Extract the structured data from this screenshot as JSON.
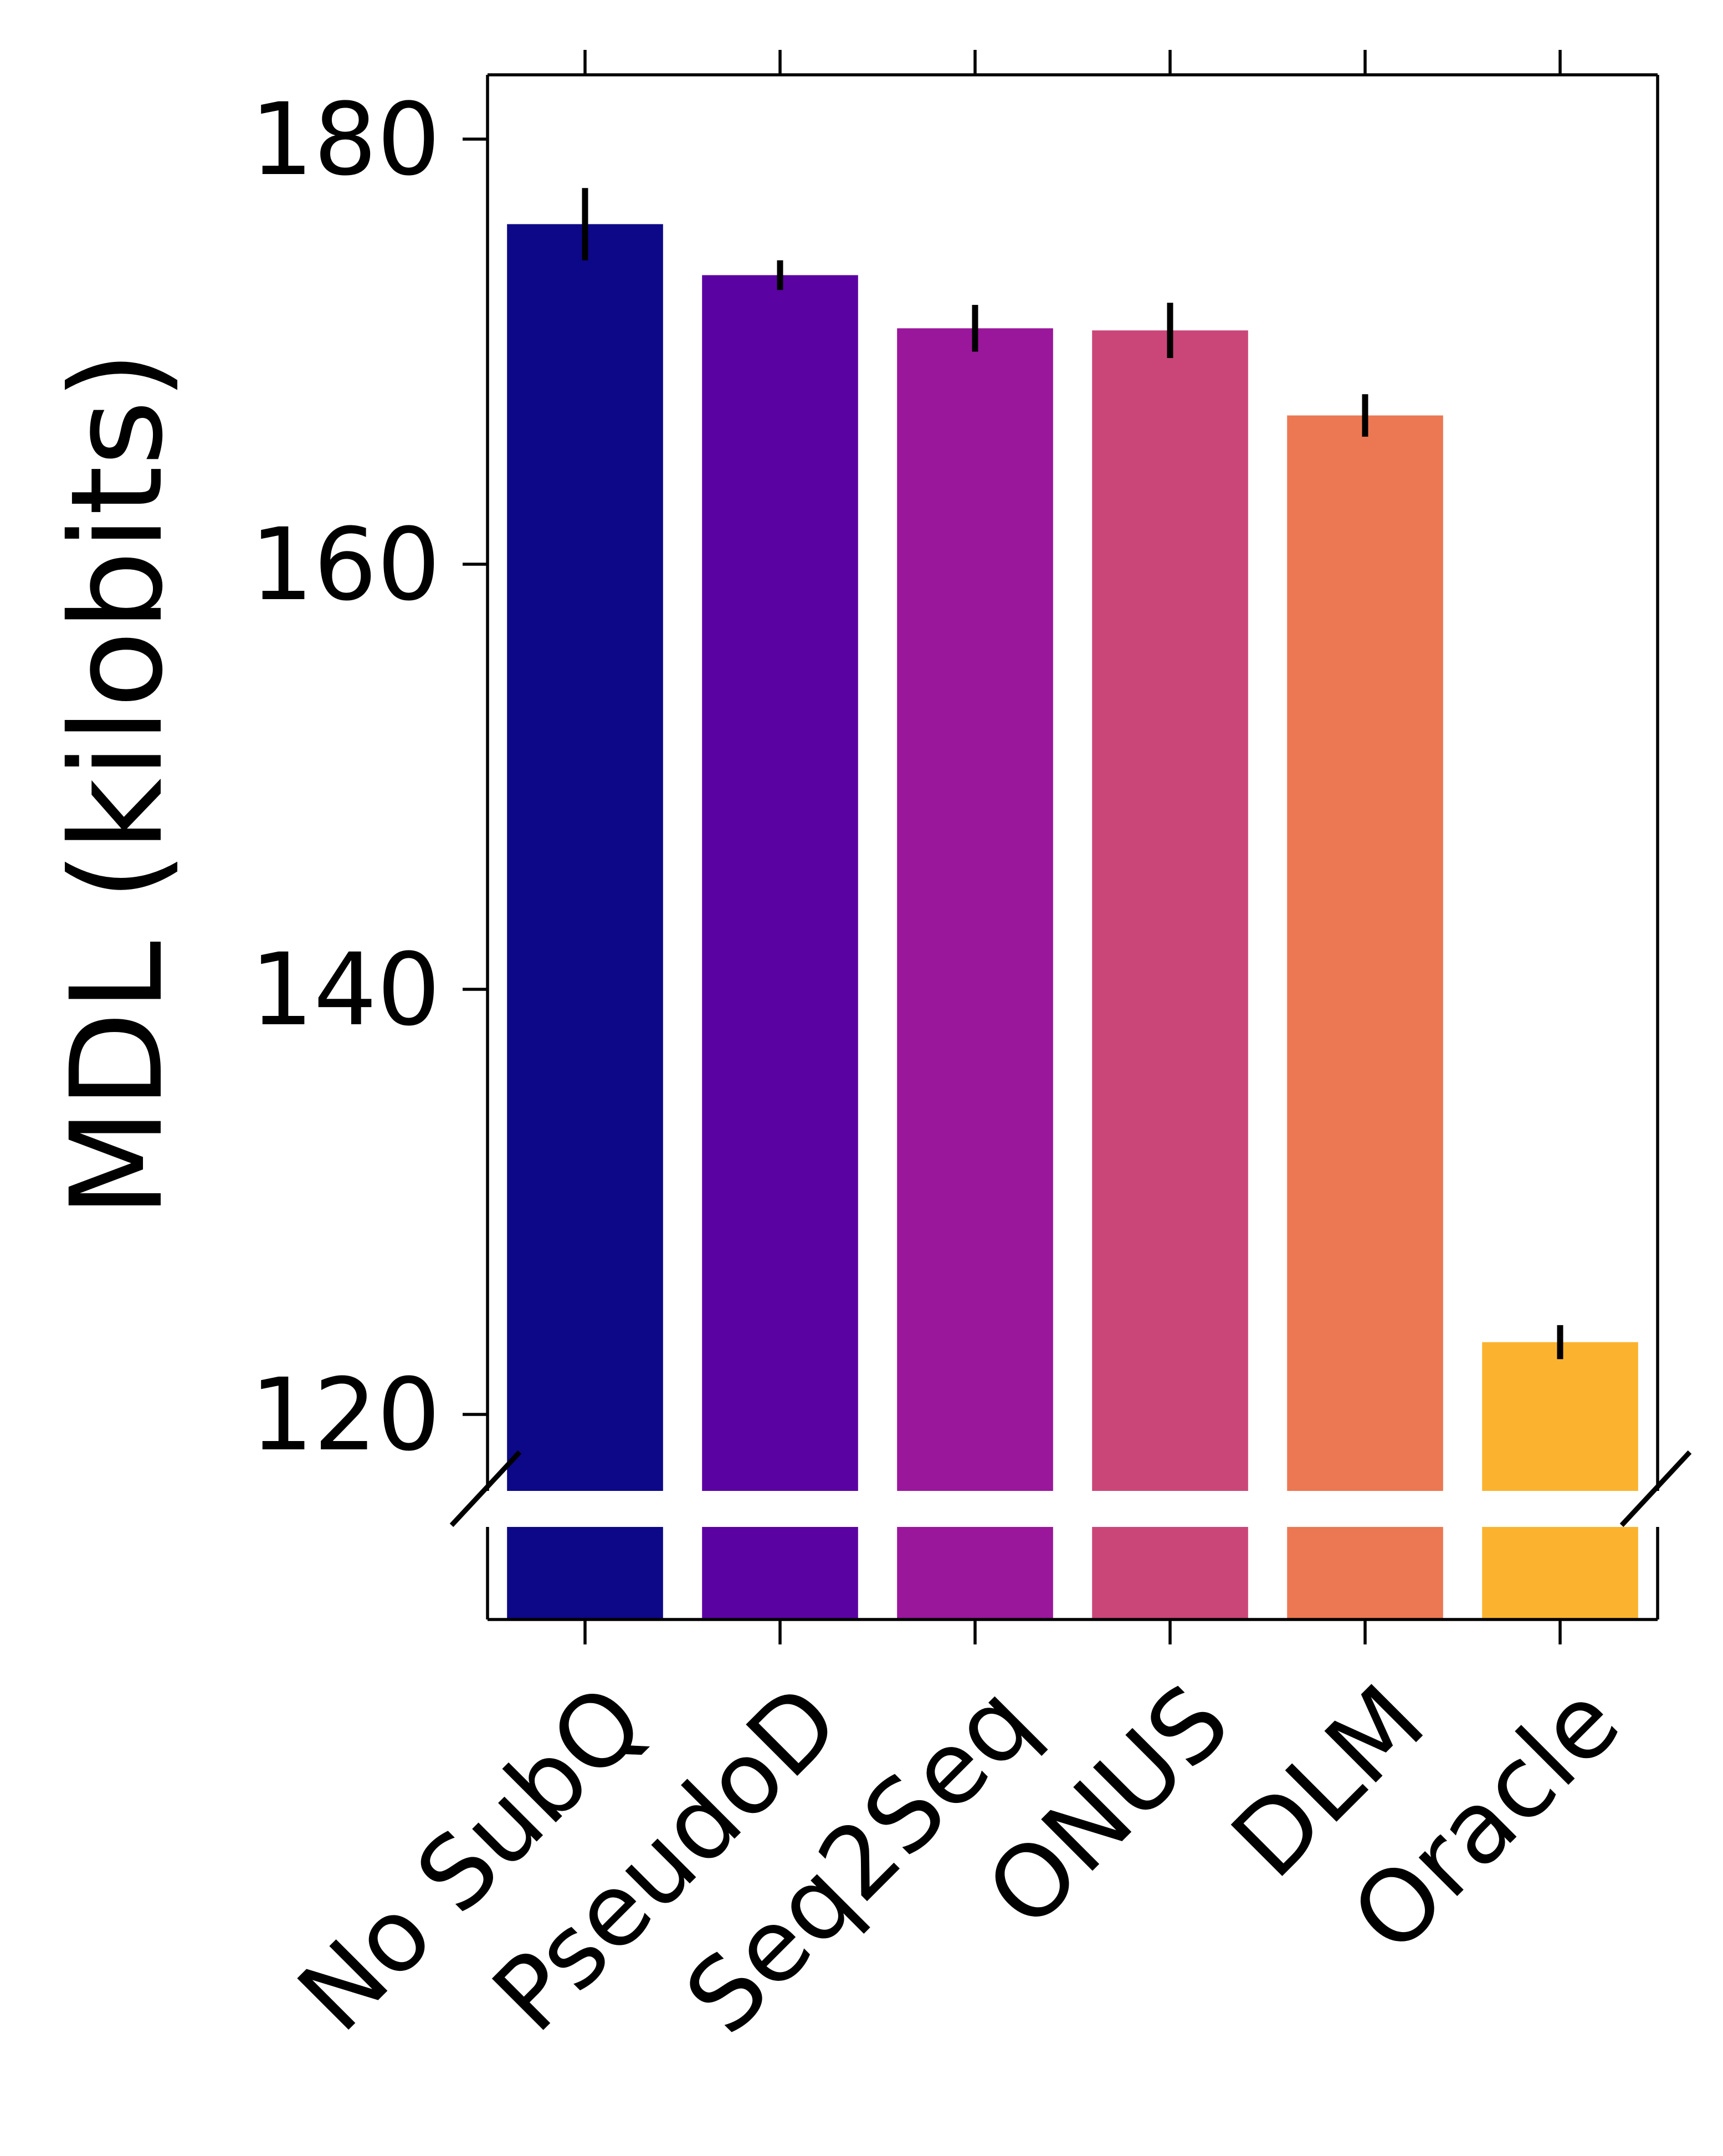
{
  "chart_data": {
    "type": "bar",
    "ylabel": "MDL (kilobits)",
    "ylim": [
      116.5,
      183
    ],
    "yticks": [
      120,
      140,
      160,
      180
    ],
    "broken_axis": true,
    "grid": false,
    "categories": [
      "No SubQ",
      "PseudoD",
      "Seq2Seq",
      "ONUS",
      "DLM",
      "Oracle"
    ],
    "values": [
      176.0,
      173.6,
      171.1,
      171.0,
      167.0,
      123.4
    ],
    "error": [
      1.7,
      0.7,
      1.1,
      1.3,
      1.0,
      0.8
    ],
    "colors": [
      "#0d0887",
      "#5b02a3",
      "#9a179b",
      "#cb4678",
      "#eb7852",
      "#fbb32f"
    ]
  }
}
